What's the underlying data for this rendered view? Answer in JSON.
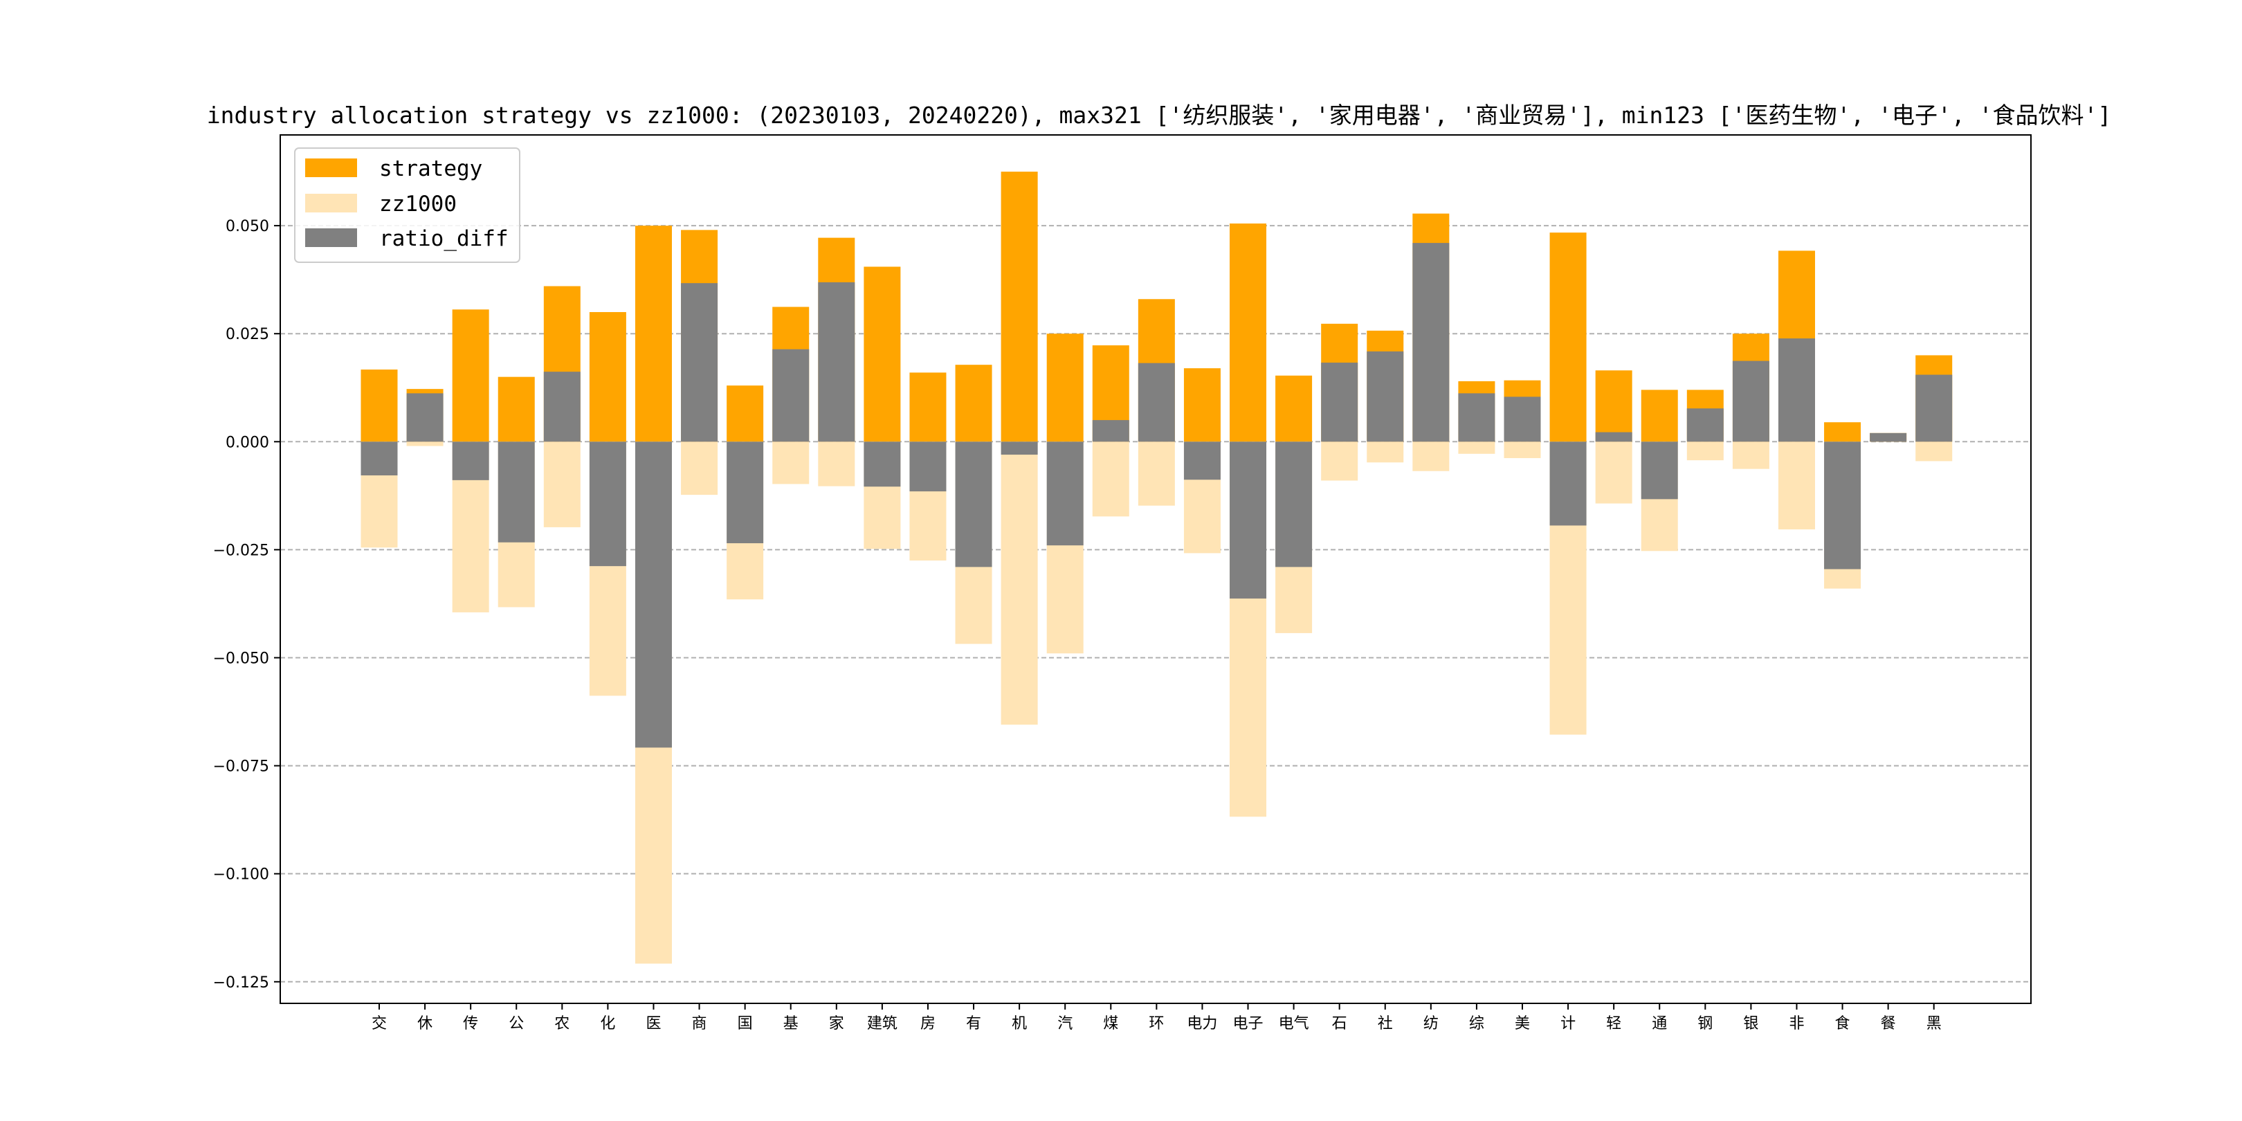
{
  "chart_data": {
    "type": "bar",
    "title": "industry allocation strategy vs zz1000: (20230103, 20240220), max321 ['纺织服装', '家用电器', '商业贸易'], min123 ['医药生物', '电子', '食品饮料']",
    "xlabel": "",
    "ylabel": "",
    "ylim": [
      -0.13,
      0.071
    ],
    "yticks": [
      -0.125,
      -0.1,
      -0.075,
      -0.05,
      -0.025,
      0.0,
      0.025,
      0.05
    ],
    "ytick_labels": [
      "−0.125",
      "−0.100",
      "−0.075",
      "−0.050",
      "−0.025",
      "0.000",
      "0.025",
      "0.050"
    ],
    "grid": "y-dashed",
    "legend_position": "top-left",
    "categories": [
      "交",
      "休",
      "传",
      "公",
      "农",
      "化",
      "医",
      "商",
      "国",
      "基",
      "家",
      "建筑",
      "房",
      "有",
      "机",
      "汽",
      "煤",
      "环",
      "电力",
      "电子",
      "电气",
      "石",
      "社",
      "纺",
      "综",
      "美",
      "计",
      "轻",
      "通",
      "钢",
      "银",
      "非",
      "食",
      "餐",
      "黑"
    ],
    "series": [
      {
        "name": "strategy",
        "color": "#FFA500",
        "values": [
          0.0167,
          0.0122,
          0.0306,
          0.015,
          0.036,
          0.03,
          0.05,
          0.049,
          0.013,
          0.0312,
          0.0472,
          0.0405,
          0.016,
          0.0178,
          0.0625,
          0.025,
          0.0223,
          0.033,
          0.017,
          0.0505,
          0.0153,
          0.0273,
          0.0257,
          0.0528,
          0.014,
          0.0142,
          0.0484,
          0.0165,
          0.012,
          0.012,
          0.025,
          0.0442,
          0.0045,
          0.002,
          0.02
        ]
      },
      {
        "name": "zz1000",
        "color": "#FFE4B5",
        "values": [
          -0.0245,
          -0.001,
          -0.0395,
          -0.0383,
          -0.0198,
          -0.0588,
          -0.1208,
          -0.0123,
          -0.0365,
          -0.0098,
          -0.0103,
          -0.0248,
          -0.0275,
          -0.0468,
          -0.0655,
          -0.049,
          -0.0173,
          -0.0148,
          -0.0258,
          -0.0868,
          -0.0443,
          -0.009,
          -0.0048,
          -0.0068,
          -0.0028,
          -0.0038,
          -0.0678,
          -0.0143,
          -0.0253,
          -0.0043,
          -0.0063,
          -0.0203,
          -0.034,
          0.0,
          -0.0045
        ]
      },
      {
        "name": "ratio_diff",
        "color": "#808080",
        "values": [
          -0.0078,
          0.0112,
          -0.0089,
          -0.0233,
          0.0162,
          -0.0288,
          -0.0708,
          0.0367,
          -0.0235,
          0.0214,
          0.0369,
          -0.0104,
          -0.0115,
          -0.029,
          -0.003,
          -0.024,
          0.005,
          0.0182,
          -0.0088,
          -0.0363,
          -0.029,
          0.0183,
          0.0209,
          0.046,
          0.0112,
          0.0104,
          -0.0194,
          0.0022,
          -0.0133,
          0.0077,
          0.0187,
          0.0239,
          -0.0295,
          0.002,
          0.0155
        ]
      }
    ]
  }
}
